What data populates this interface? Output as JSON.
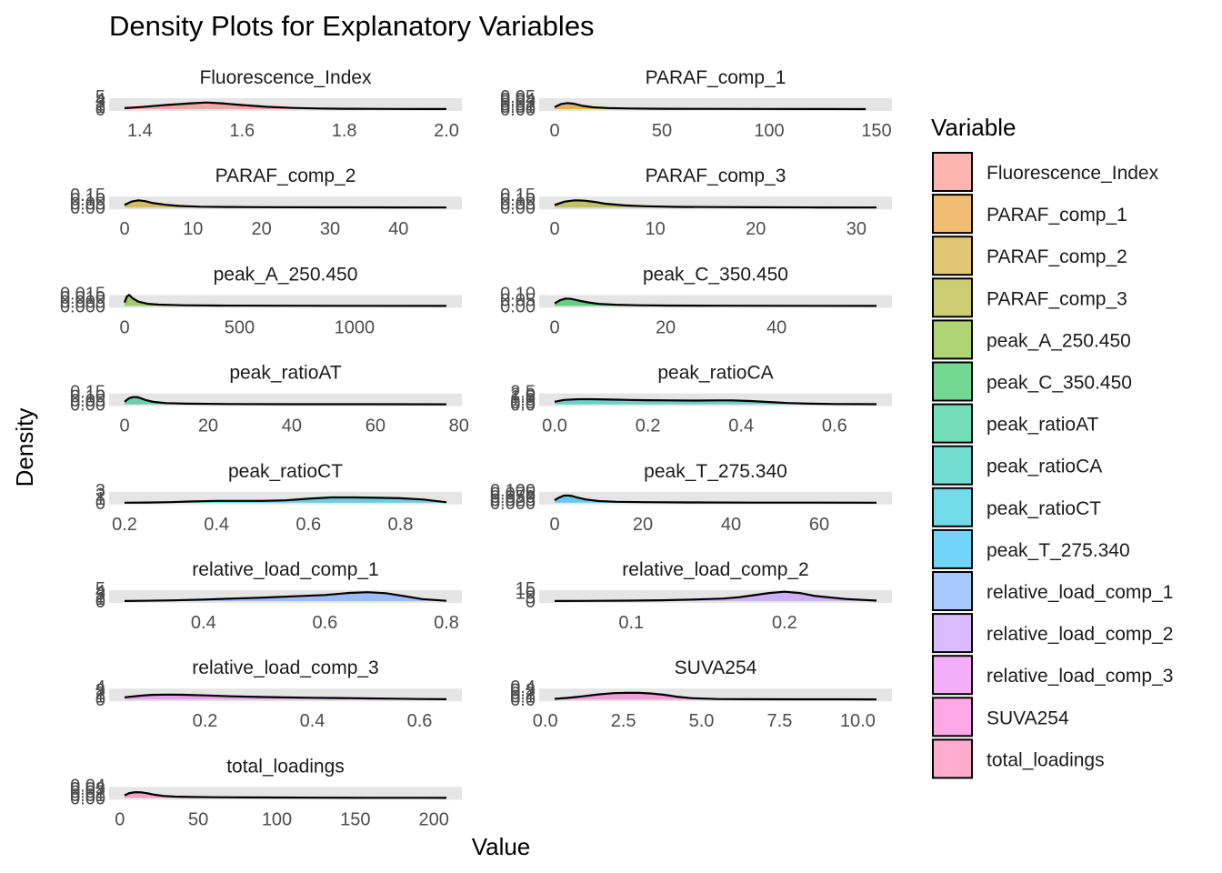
{
  "chart_data": {
    "type": "area",
    "title": "Density Plots for Explanatory Variables",
    "xlabel": "Value",
    "ylabel": "Density",
    "legend": {
      "title": "Variable",
      "placement": "right"
    },
    "grid": false,
    "fill_opacity": 0.55,
    "panels": [
      {
        "name": "Fluorescence_Index",
        "color": "#F8766D",
        "xlim": [
          1.37,
          2.0
        ],
        "xticks": [
          {
            "v": 1.4,
            "l": "1.4"
          },
          {
            "v": 1.6,
            "l": "1.6"
          },
          {
            "v": 1.8,
            "l": "1.8"
          },
          {
            "v": 2.0,
            "l": "2.0"
          }
        ],
        "yticks": [
          "0",
          "1",
          "2",
          "3",
          "4",
          "5"
        ],
        "ymax": 5,
        "x": [
          1.37,
          1.4,
          1.45,
          1.5,
          1.53,
          1.56,
          1.6,
          1.65,
          1.7,
          1.75,
          1.8,
          1.85,
          1.9,
          1.95,
          2.0
        ],
        "y": [
          0.4,
          0.8,
          1.6,
          2.3,
          2.6,
          2.3,
          1.6,
          0.9,
          0.45,
          0.25,
          0.15,
          0.12,
          0.08,
          0.05,
          0.02
        ]
      },
      {
        "name": "PARAF_comp_1",
        "color": "#E58700",
        "xlim": [
          0,
          150
        ],
        "xticks": [
          {
            "v": 0,
            "l": "0"
          },
          {
            "v": 50,
            "l": "50"
          },
          {
            "v": 100,
            "l": "100"
          },
          {
            "v": 150,
            "l": "150"
          }
        ],
        "yticks": [
          "0.00",
          "0.01",
          "0.02",
          "0.03",
          "0.04",
          "0.05"
        ],
        "ymax": 0.05,
        "x": [
          0,
          3,
          6,
          9,
          13,
          18,
          25,
          35,
          50,
          70,
          100,
          125,
          145
        ],
        "y": [
          0.008,
          0.02,
          0.024,
          0.021,
          0.013,
          0.007,
          0.004,
          0.0025,
          0.0015,
          0.001,
          0.0006,
          0.0003,
          0.0001
        ]
      },
      {
        "name": "PARAF_comp_2",
        "color": "#C99800",
        "xlim": [
          0,
          47
        ],
        "xticks": [
          {
            "v": 0,
            "l": "0"
          },
          {
            "v": 10,
            "l": "10"
          },
          {
            "v": 20,
            "l": "20"
          },
          {
            "v": 30,
            "l": "30"
          },
          {
            "v": 40,
            "l": "40"
          }
        ],
        "yticks": [
          "0.00",
          "0.05",
          "0.10",
          "0.15"
        ],
        "ymax": 0.15,
        "x": [
          0,
          1,
          2,
          3,
          4,
          6,
          8,
          11,
          15,
          20,
          30,
          40,
          47
        ],
        "y": [
          0.03,
          0.07,
          0.085,
          0.075,
          0.055,
          0.032,
          0.018,
          0.01,
          0.006,
          0.004,
          0.002,
          0.001,
          0.0005
        ]
      },
      {
        "name": "PARAF_comp_3",
        "color": "#A3A500",
        "xlim": [
          0,
          32
        ],
        "xticks": [
          {
            "v": 0,
            "l": "0"
          },
          {
            "v": 10,
            "l": "10"
          },
          {
            "v": 20,
            "l": "20"
          },
          {
            "v": 30,
            "l": "30"
          }
        ],
        "yticks": [
          "0.00",
          "0.05",
          "0.10",
          "0.15"
        ],
        "ymax": 0.15,
        "x": [
          0,
          1,
          2,
          3,
          4,
          5,
          7,
          9,
          12,
          16,
          20,
          26,
          32
        ],
        "y": [
          0.03,
          0.07,
          0.085,
          0.08,
          0.065,
          0.045,
          0.025,
          0.015,
          0.008,
          0.005,
          0.003,
          0.0015,
          0.0005
        ]
      },
      {
        "name": "peak_A_250.450",
        "color": "#6BB100",
        "xlim": [
          0,
          1400
        ],
        "xticks": [
          {
            "v": 0,
            "l": "0"
          },
          {
            "v": 500,
            "l": "500"
          },
          {
            "v": 1000,
            "l": "1000"
          }
        ],
        "yticks": [
          "0.000",
          "0.005",
          "0.010",
          "0.015"
        ],
        "ymax": 0.015,
        "x": [
          0,
          10,
          20,
          35,
          60,
          100,
          150,
          250,
          400,
          700,
          1000,
          1400
        ],
        "y": [
          0.004,
          0.011,
          0.013,
          0.009,
          0.005,
          0.0025,
          0.0015,
          0.0008,
          0.0004,
          0.0002,
          0.0001,
          5e-05
        ]
      },
      {
        "name": "peak_C_350.450",
        "color": "#00BA38",
        "xlim": [
          0,
          58
        ],
        "xticks": [
          {
            "v": 0,
            "l": "0"
          },
          {
            "v": 20,
            "l": "20"
          },
          {
            "v": 40,
            "l": "40"
          }
        ],
        "yticks": [
          "0.00",
          "0.05",
          "0.10"
        ],
        "ymax": 0.1,
        "x": [
          0,
          1,
          2,
          3,
          4,
          6,
          8,
          11,
          15,
          20,
          30,
          45,
          58
        ],
        "y": [
          0.02,
          0.045,
          0.058,
          0.055,
          0.045,
          0.028,
          0.016,
          0.009,
          0.005,
          0.003,
          0.0015,
          0.0007,
          0.0003
        ]
      },
      {
        "name": "peak_ratioAT",
        "color": "#00BF7D",
        "xlim": [
          0,
          77
        ],
        "xticks": [
          {
            "v": 0,
            "l": "0"
          },
          {
            "v": 20,
            "l": "20"
          },
          {
            "v": 40,
            "l": "40"
          },
          {
            "v": 60,
            "l": "60"
          },
          {
            "v": 80,
            "l": "80"
          }
        ],
        "yticks": [
          "0.00",
          "0.05",
          "0.10",
          "0.15"
        ],
        "ymax": 0.15,
        "x": [
          0,
          1,
          2,
          3,
          4,
          5,
          7,
          10,
          15,
          25,
          40,
          60,
          77
        ],
        "y": [
          0.03,
          0.07,
          0.085,
          0.085,
          0.07,
          0.05,
          0.028,
          0.014,
          0.007,
          0.003,
          0.0015,
          0.0007,
          0.0003
        ]
      },
      {
        "name": "peak_ratioCA",
        "color": "#00C0AF",
        "xlim": [
          0,
          0.69
        ],
        "xticks": [
          {
            "v": 0.0,
            "l": "0.0"
          },
          {
            "v": 0.2,
            "l": "0.2"
          },
          {
            "v": 0.4,
            "l": "0.4"
          },
          {
            "v": 0.6,
            "l": "0.6"
          }
        ],
        "yticks": [
          "0.0",
          "0.5",
          "1.0",
          "1.5",
          "2.0",
          "2.5"
        ],
        "ymax": 2.5,
        "x": [
          0,
          0.02,
          0.05,
          0.08,
          0.12,
          0.16,
          0.2,
          0.25,
          0.3,
          0.35,
          0.38,
          0.42,
          0.46,
          0.5,
          0.55,
          0.6,
          0.65,
          0.69
        ],
        "y": [
          0.5,
          0.85,
          1.0,
          1.0,
          0.92,
          0.85,
          0.8,
          0.76,
          0.74,
          0.76,
          0.76,
          0.65,
          0.45,
          0.25,
          0.12,
          0.06,
          0.03,
          0.01
        ]
      },
      {
        "name": "peak_ratioCT",
        "color": "#00BCD8",
        "xlim": [
          0.2,
          0.9
        ],
        "xticks": [
          {
            "v": 0.2,
            "l": "0.2"
          },
          {
            "v": 0.4,
            "l": "0.4"
          },
          {
            "v": 0.6,
            "l": "0.6"
          },
          {
            "v": 0.8,
            "l": "0.8"
          }
        ],
        "yticks": [
          "0",
          "1",
          "2",
          "3"
        ],
        "ymax": 3,
        "x": [
          0.2,
          0.25,
          0.3,
          0.35,
          0.4,
          0.45,
          0.5,
          0.55,
          0.6,
          0.65,
          0.7,
          0.75,
          0.8,
          0.85,
          0.9
        ],
        "y": [
          0.01,
          0.05,
          0.12,
          0.3,
          0.42,
          0.42,
          0.42,
          0.55,
          0.95,
          1.25,
          1.25,
          1.15,
          1.05,
          0.75,
          0.1
        ]
      },
      {
        "name": "peak_T_275.340",
        "color": "#00B0F6",
        "xlim": [
          0,
          73
        ],
        "xticks": [
          {
            "v": 0,
            "l": "0"
          },
          {
            "v": 20,
            "l": "20"
          },
          {
            "v": 40,
            "l": "40"
          },
          {
            "v": 60,
            "l": "60"
          }
        ],
        "yticks": [
          "0.000",
          "0.025",
          "0.050",
          "0.075",
          "0.100"
        ],
        "ymax": 0.1,
        "x": [
          0,
          1,
          2,
          3,
          4,
          5,
          7,
          10,
          14,
          20,
          30,
          45,
          60,
          73
        ],
        "y": [
          0.02,
          0.04,
          0.055,
          0.057,
          0.052,
          0.042,
          0.026,
          0.013,
          0.007,
          0.004,
          0.002,
          0.001,
          0.0005,
          0.0002
        ]
      },
      {
        "name": "relative_load_comp_1",
        "color": "#619CFF",
        "xlim": [
          0.27,
          0.8
        ],
        "xticks": [
          {
            "v": 0.4,
            "l": "0.4"
          },
          {
            "v": 0.6,
            "l": "0.6"
          },
          {
            "v": 0.8,
            "l": "0.8"
          }
        ],
        "yticks": [
          "0",
          "1",
          "2",
          "3",
          "4",
          "5"
        ],
        "ymax": 5,
        "x": [
          0.27,
          0.3,
          0.35,
          0.4,
          0.45,
          0.5,
          0.55,
          0.6,
          0.64,
          0.67,
          0.7,
          0.73,
          0.76,
          0.8
        ],
        "y": [
          0.02,
          0.1,
          0.3,
          0.6,
          1.0,
          1.4,
          1.9,
          2.4,
          3.2,
          3.5,
          3.1,
          2.0,
          0.8,
          0.1
        ]
      },
      {
        "name": "relative_load_comp_2",
        "color": "#B983FF",
        "xlim": [
          0.05,
          0.26
        ],
        "xticks": [
          {
            "v": 0.1,
            "l": "0.1"
          },
          {
            "v": 0.2,
            "l": "0.2"
          }
        ],
        "yticks": [
          "0",
          "5",
          "10",
          "15"
        ],
        "ymax": 15,
        "x": [
          0.05,
          0.08,
          0.1,
          0.12,
          0.14,
          0.16,
          0.17,
          0.18,
          0.19,
          0.2,
          0.21,
          0.22,
          0.24,
          0.26
        ],
        "y": [
          0.1,
          0.3,
          0.5,
          1.0,
          1.8,
          3.0,
          4.5,
          7.0,
          9.5,
          11.0,
          9.5,
          6.0,
          2.5,
          0.5
        ]
      },
      {
        "name": "relative_load_comp_3",
        "color": "#E76BF3",
        "xlim": [
          0.05,
          0.65
        ],
        "xticks": [
          {
            "v": 0.2,
            "l": "0.2"
          },
          {
            "v": 0.4,
            "l": "0.4"
          },
          {
            "v": 0.6,
            "l": "0.6"
          }
        ],
        "yticks": [
          "0",
          "1",
          "2",
          "3",
          "4"
        ],
        "ymax": 4,
        "x": [
          0.05,
          0.08,
          0.1,
          0.13,
          0.16,
          0.2,
          0.25,
          0.3,
          0.35,
          0.4,
          0.45,
          0.5,
          0.55,
          0.6,
          0.65
        ],
        "y": [
          0.7,
          1.2,
          1.45,
          1.55,
          1.5,
          1.3,
          1.0,
          0.8,
          0.65,
          0.55,
          0.45,
          0.35,
          0.25,
          0.15,
          0.1
        ]
      },
      {
        "name": "SUVA254",
        "color": "#FD61D1",
        "xlim": [
          0.3,
          10.6
        ],
        "xticks": [
          {
            "v": 0.0,
            "l": "0.0"
          },
          {
            "v": 2.5,
            "l": "2.5"
          },
          {
            "v": 5.0,
            "l": "5.0"
          },
          {
            "v": 7.5,
            "l": "7.5"
          },
          {
            "v": 10.0,
            "l": "10.0"
          }
        ],
        "yticks": [
          "0.0",
          "0.1",
          "0.2",
          "0.3",
          "0.4"
        ],
        "ymax": 0.4,
        "x": [
          0.3,
          0.7,
          1.2,
          1.7,
          2.2,
          2.6,
          3.0,
          3.4,
          3.8,
          4.2,
          4.7,
          5.5,
          6.5,
          8.0,
          9.5,
          10.6
        ],
        "y": [
          0.02,
          0.05,
          0.1,
          0.16,
          0.2,
          0.21,
          0.21,
          0.19,
          0.15,
          0.09,
          0.04,
          0.015,
          0.01,
          0.007,
          0.005,
          0.003
        ]
      },
      {
        "name": "total_loadings",
        "color": "#FF67A4",
        "xlim": [
          3,
          208
        ],
        "xticks": [
          {
            "v": 0,
            "l": "0"
          },
          {
            "v": 50,
            "l": "50"
          },
          {
            "v": 100,
            "l": "100"
          },
          {
            "v": 150,
            "l": "150"
          },
          {
            "v": 200,
            "l": "200"
          }
        ],
        "yticks": [
          "0.00",
          "0.01",
          "0.02",
          "0.03",
          "0.04"
        ],
        "ymax": 0.04,
        "x": [
          3,
          6,
          10,
          14,
          18,
          22,
          28,
          35,
          45,
          60,
          80,
          100,
          130,
          160,
          190,
          208
        ],
        "y": [
          0.008,
          0.015,
          0.018,
          0.017,
          0.014,
          0.01,
          0.006,
          0.004,
          0.003,
          0.002,
          0.0015,
          0.001,
          0.0006,
          0.0004,
          0.0002,
          0.0001
        ]
      }
    ]
  }
}
